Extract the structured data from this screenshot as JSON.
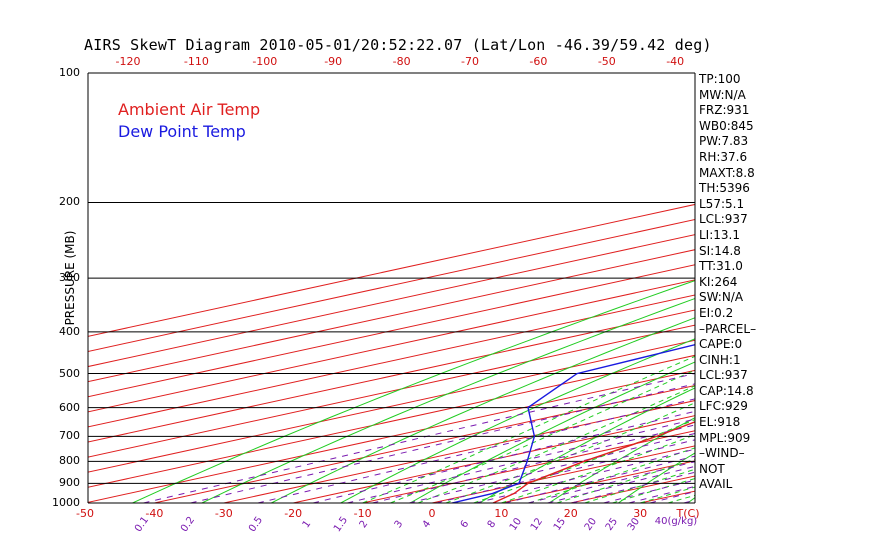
{
  "title": "AIRS SkewT Diagram 2010-05-01/20:52:22.07 (Lat/Lon -46.39/59.42 deg)",
  "legend": {
    "ambient": "Ambient Air Temp",
    "dew": "Dew Point Temp"
  },
  "colors": {
    "ambient": "#e02020",
    "dew": "#1a1ae0",
    "isotherm": "#e02020",
    "dry_adiabat": "#22cc22",
    "moist_adiabat": "#22cc22",
    "mixing_ratio": "#7a1ab0",
    "isobar": "#000000"
  },
  "indices": [
    "TP:100",
    "MW:N/A",
    "FRZ:931",
    "WB0:845",
    "PW:7.83",
    "RH:37.6",
    "MAXT:8.8",
    "TH:5396",
    "L57:5.1",
    "LCL:937",
    "LI:13.1",
    "SI:14.8",
    "TT:31.0",
    "KI:264",
    "SW:N/A",
    "EI:0.2",
    "–PARCEL–",
    "CAPE:0",
    "CINH:1",
    "LCL:937",
    "CAP:14.8",
    "LFC:929",
    "EL:918",
    "MPL:909",
    "–WIND–",
    "NOT",
    "AVAIL"
  ],
  "chart_data": {
    "type": "line",
    "title": "AIRS SkewT Diagram 2010-05-01/20:52:22.07 (Lat/Lon -46.39/59.42 deg)",
    "ylabel": "PRESSURE (MB)",
    "y_scale": "log",
    "ylim": [
      1000,
      100
    ],
    "pressure_ticks": [
      {
        "label": "100",
        "value": 100
      },
      {
        "label": "200",
        "value": 200
      },
      {
        "label": "300",
        "value": 300
      },
      {
        "label": "400",
        "value": 400
      },
      {
        "label": "500",
        "value": 500
      },
      {
        "label": "600",
        "value": 600
      },
      {
        "label": "700",
        "value": 700
      },
      {
        "label": "800",
        "value": 800
      },
      {
        "label": "900",
        "value": 900
      },
      {
        "label": "1000",
        "value": 1000
      }
    ],
    "top_temp_ticks": [
      "-120",
      "-110",
      "-100",
      "-90",
      "-80",
      "-70",
      "-60",
      "-50",
      "-40"
    ],
    "bottom_temp_ticks": [
      "-50",
      "-40",
      "-30",
      "-20",
      "-10",
      "0",
      "10",
      "20",
      "30",
      "T(C)"
    ],
    "mixing_ratio_ticks": [
      "0.1",
      "0.2",
      "0.5",
      "1",
      "1.5",
      "2",
      "3",
      "4",
      "6",
      "8",
      "10",
      "12",
      "15",
      "20",
      "25",
      "30",
      "40(g/kg)"
    ],
    "series": [
      {
        "name": "Ambient Air Temp",
        "points": [
          {
            "p": 100,
            "t": -57.0
          },
          {
            "p": 150,
            "t": -54.7
          },
          {
            "p": 200,
            "t": -56.2
          },
          {
            "p": 250,
            "t": -56.4
          },
          {
            "p": 300,
            "t": -50.9
          },
          {
            "p": 400,
            "t": -38.2
          },
          {
            "p": 500,
            "t": -27.9
          },
          {
            "p": 600,
            "t": -19.9
          },
          {
            "p": 700,
            "t": -11.8
          },
          {
            "p": 800,
            "t": -5.7
          },
          {
            "p": 900,
            "t": 0.8
          },
          {
            "p": 950,
            "t": 5.5
          },
          {
            "p": 1000,
            "t": 8.8
          }
        ]
      },
      {
        "name": "Dew Point Temp",
        "points": [
          {
            "p": 100,
            "t": -89.7
          },
          {
            "p": 150,
            "t": -103.0
          },
          {
            "p": 200,
            "t": -94.8
          },
          {
            "p": 250,
            "t": -85.6
          },
          {
            "p": 300,
            "t": -77.0
          },
          {
            "p": 400,
            "t": -68.0
          },
          {
            "p": 500,
            "t": -64.9
          },
          {
            "p": 600,
            "t": -49.4
          },
          {
            "p": 700,
            "t": -29.4
          },
          {
            "p": 800,
            "t": -13.9
          },
          {
            "p": 900,
            "t": -0.5
          },
          {
            "p": 950,
            "t": 2.4
          },
          {
            "p": 1000,
            "t": 2.9
          }
        ]
      }
    ]
  }
}
